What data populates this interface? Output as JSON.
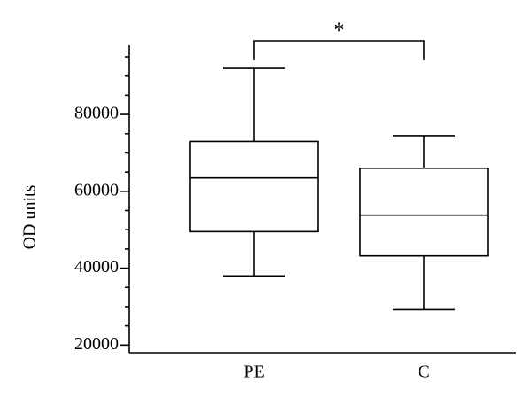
{
  "chart_data": {
    "type": "box",
    "y_label": "OD units",
    "categories": [
      "PE",
      "C"
    ],
    "min": [
      38000,
      29200
    ],
    "q1": [
      49500,
      43200
    ],
    "median": [
      63500,
      53800
    ],
    "q3": [
      73000,
      66000
    ],
    "max": [
      92000,
      74500
    ],
    "ylim": [
      18000,
      98000
    ],
    "yticks": [
      20000,
      40000,
      60000,
      80000
    ],
    "yminorticks": [
      25000,
      30000,
      35000,
      45000,
      50000,
      55000,
      65000,
      70000,
      75000,
      85000,
      90000,
      95000
    ],
    "annotation": "*",
    "color": "#000000"
  }
}
